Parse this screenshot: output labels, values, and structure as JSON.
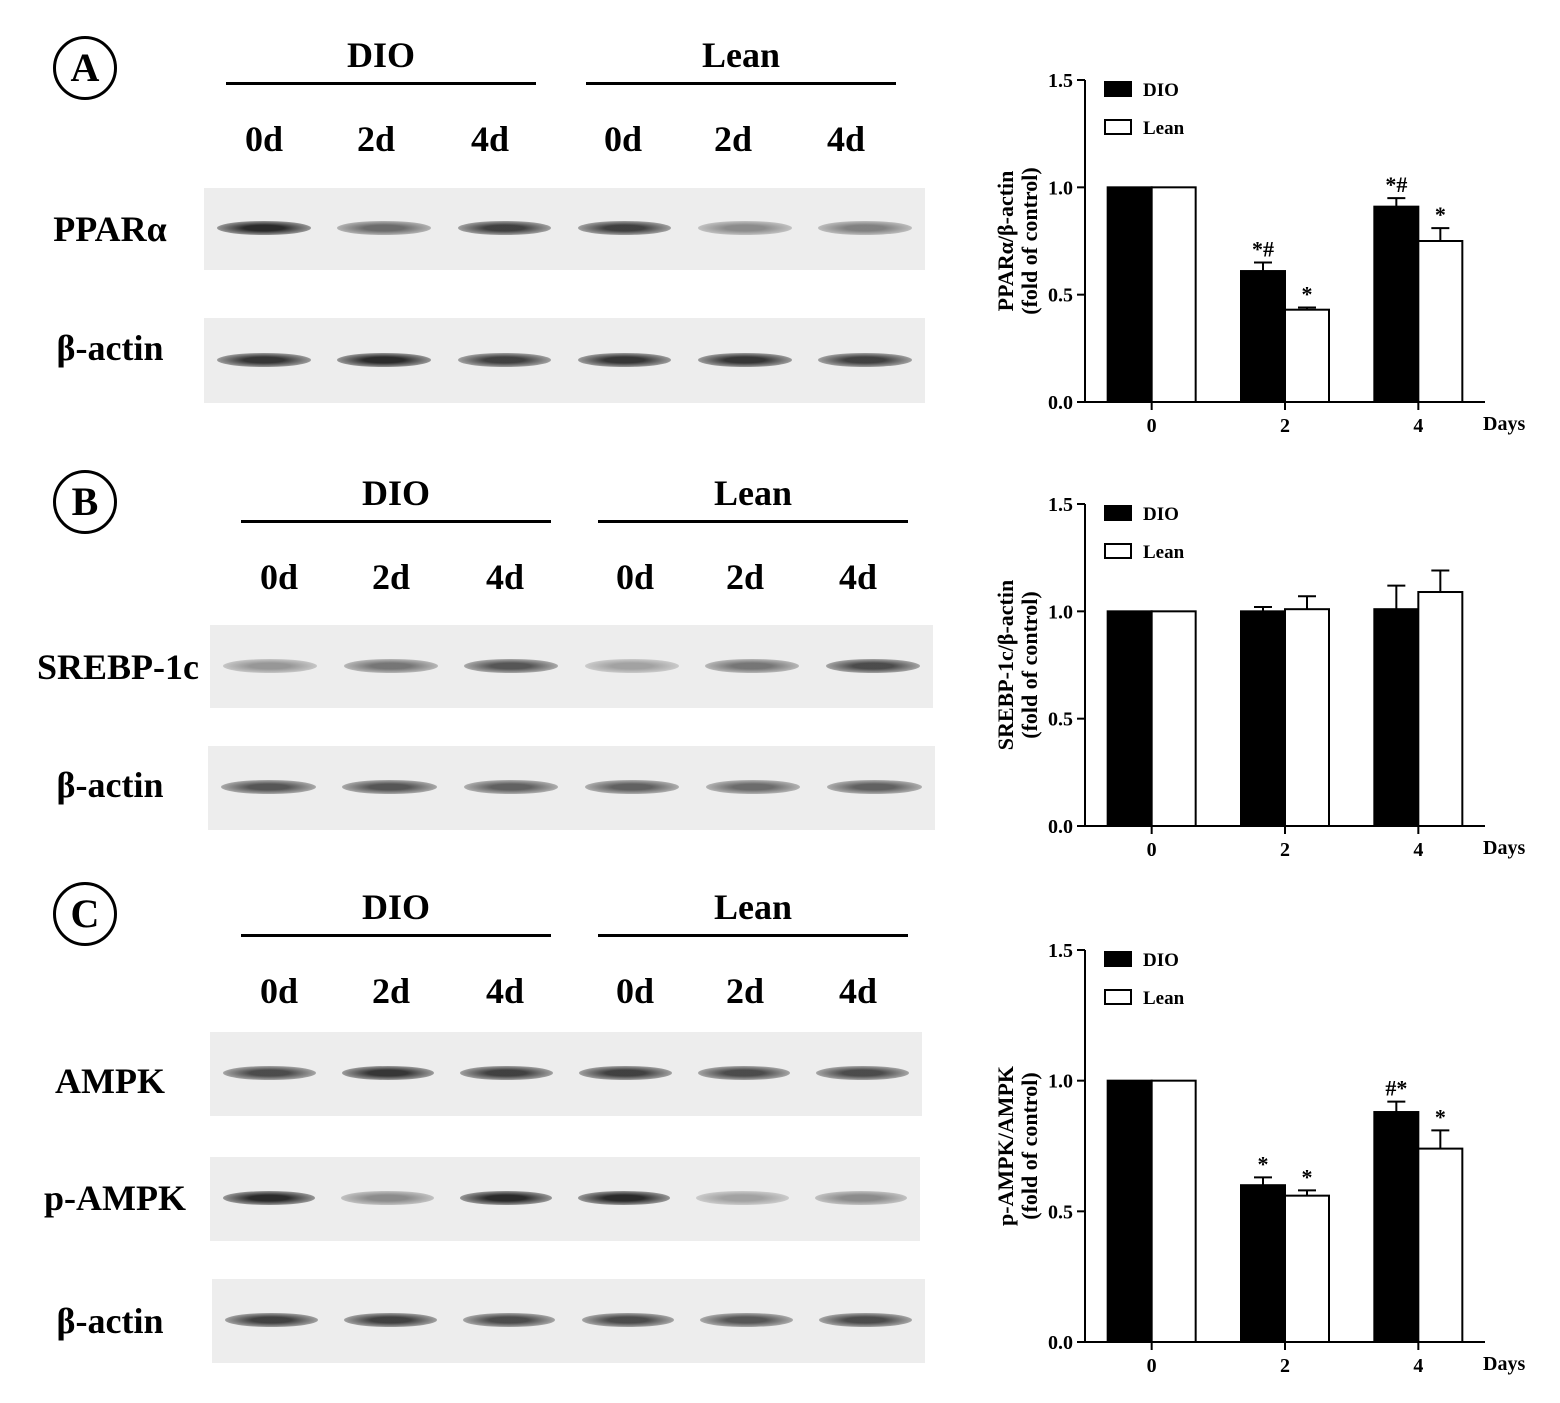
{
  "panels": [
    {
      "letter": "A",
      "groups": [
        "DIO",
        "Lean"
      ],
      "lanes": [
        "0d",
        "2d",
        "4d",
        "0d",
        "2d",
        "4d"
      ],
      "proteins": [
        "PPARα",
        "β-actin"
      ],
      "bands": [
        [
          0.9,
          0.6,
          0.8,
          0.8,
          0.45,
          0.5
        ],
        [
          0.85,
          0.9,
          0.8,
          0.85,
          0.85,
          0.8
        ]
      ],
      "chart_index": 0
    },
    {
      "letter": "B",
      "groups": [
        "DIO",
        "Lean"
      ],
      "lanes": [
        "0d",
        "2d",
        "4d",
        "0d",
        "2d",
        "4d"
      ],
      "proteins": [
        "SREBP-1c",
        "β-actin"
      ],
      "bands": [
        [
          0.4,
          0.55,
          0.7,
          0.35,
          0.55,
          0.75
        ],
        [
          0.7,
          0.7,
          0.65,
          0.65,
          0.6,
          0.65
        ]
      ],
      "chart_index": 1
    },
    {
      "letter": "C",
      "groups": [
        "DIO",
        "Lean"
      ],
      "lanes": [
        "0d",
        "2d",
        "4d",
        "0d",
        "2d",
        "4d"
      ],
      "proteins": [
        "AMPK",
        "p-AMPK",
        "β-actin"
      ],
      "bands": [
        [
          0.75,
          0.85,
          0.8,
          0.8,
          0.75,
          0.75
        ],
        [
          0.9,
          0.45,
          0.9,
          0.9,
          0.35,
          0.45
        ],
        [
          0.8,
          0.8,
          0.75,
          0.75,
          0.7,
          0.75
        ]
      ],
      "chart_index": 2
    }
  ],
  "chart_data": [
    {
      "type": "bar",
      "title": "",
      "xlabel": "Days",
      "ylabel": "PPARα/β-actin (fold of control)",
      "ylabel_lines": [
        "PPARα/β-actin",
        "(fold of control)"
      ],
      "categories": [
        "0",
        "2",
        "4"
      ],
      "ylim": [
        0,
        1.5
      ],
      "yticks": [
        "0.0",
        "0.5",
        "1.0",
        "1.5"
      ],
      "legend_position": "top-left",
      "series": [
        {
          "name": "DIO",
          "color": "#000000",
          "values": [
            1.0,
            0.61,
            0.91
          ],
          "errors": [
            0,
            0.04,
            0.04
          ],
          "annotations": [
            "",
            "*#",
            "*#"
          ]
        },
        {
          "name": "Lean",
          "color": "#ffffff",
          "values": [
            1.0,
            0.43,
            0.75
          ],
          "errors": [
            0,
            0.01,
            0.06
          ],
          "annotations": [
            "",
            "*",
            "*"
          ]
        }
      ]
    },
    {
      "type": "bar",
      "title": "",
      "xlabel": "Days",
      "ylabel": "SREBP-1c/β-actin (fold of control)",
      "ylabel_lines": [
        "SREBP-1c/β-actin",
        "(fold of control)"
      ],
      "categories": [
        "0",
        "2",
        "4"
      ],
      "ylim": [
        0,
        1.5
      ],
      "yticks": [
        "0.0",
        "0.5",
        "1.0",
        "1.5"
      ],
      "legend_position": "top-left",
      "series": [
        {
          "name": "DIO",
          "color": "#000000",
          "values": [
            1.0,
            1.0,
            1.01
          ],
          "errors": [
            0,
            0.02,
            0.11
          ],
          "annotations": [
            "",
            "",
            ""
          ]
        },
        {
          "name": "Lean",
          "color": "#ffffff",
          "values": [
            1.0,
            1.01,
            1.09
          ],
          "errors": [
            0,
            0.06,
            0.1
          ],
          "annotations": [
            "",
            "",
            ""
          ]
        }
      ]
    },
    {
      "type": "bar",
      "title": "",
      "xlabel": "Days",
      "ylabel": "p-AMPK/AMPK (fold of control)",
      "ylabel_lines": [
        "p-AMPK/AMPK",
        "(fold of control)"
      ],
      "categories": [
        "0",
        "2",
        "4"
      ],
      "ylim": [
        0,
        1.5
      ],
      "yticks": [
        "0.0",
        "0.5",
        "1.0",
        "1.5"
      ],
      "legend_position": "top-left",
      "series": [
        {
          "name": "DIO",
          "color": "#000000",
          "values": [
            1.0,
            0.6,
            0.88
          ],
          "errors": [
            0,
            0.03,
            0.04
          ],
          "annotations": [
            "",
            "*",
            "#*"
          ]
        },
        {
          "name": "Lean",
          "color": "#ffffff",
          "values": [
            1.0,
            0.56,
            0.74
          ],
          "errors": [
            0,
            0.02,
            0.07
          ],
          "annotations": [
            "",
            "*",
            "*"
          ]
        }
      ]
    }
  ]
}
